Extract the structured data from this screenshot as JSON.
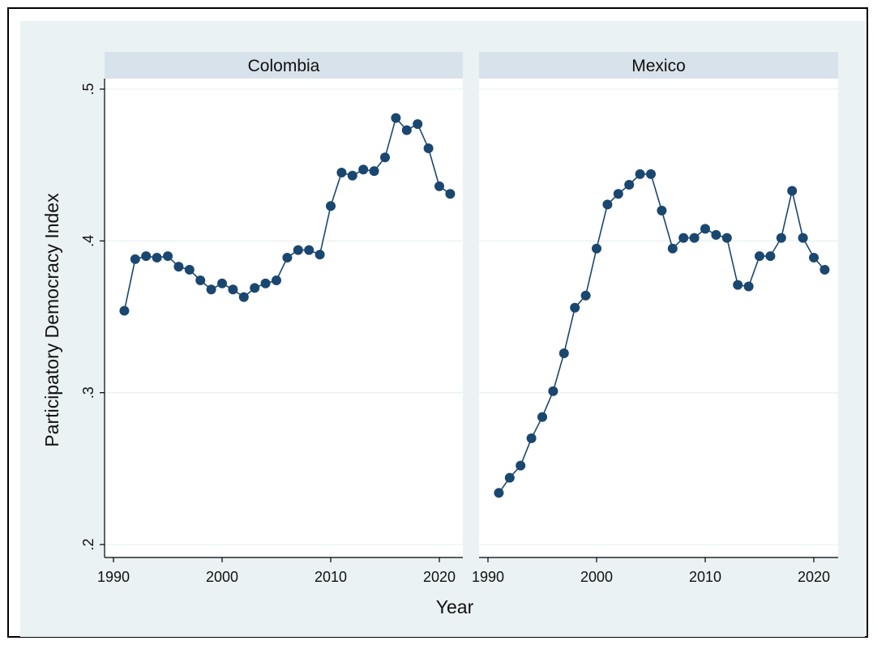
{
  "chart_data": {
    "type": "line",
    "ylabel": "Participatory Democracy Index",
    "xlabel": "Year",
    "y_ticks": [
      ".2",
      ".3",
      ".4",
      ".5"
    ],
    "y_tick_values": [
      0.2,
      0.3,
      0.4,
      0.5
    ],
    "x_ticks": [
      "1990",
      "2000",
      "2010",
      "2020"
    ],
    "x_tick_values": [
      1990,
      2000,
      2010,
      2020
    ],
    "ylim": [
      0.2,
      0.5
    ],
    "xlim": [
      1990,
      2022
    ],
    "grid": true,
    "markers": "circle",
    "colors": {
      "series": "#1a476f",
      "panel_bg": "#ffffff",
      "strip_bg": "#d8e2ea",
      "outer_bg": "#eaf2f3",
      "grid": "#eaf2f3"
    },
    "panels": [
      {
        "title": "Colombia",
        "x": [
          1991,
          1992,
          1993,
          1994,
          1995,
          1996,
          1997,
          1998,
          1999,
          2000,
          2001,
          2002,
          2003,
          2004,
          2005,
          2006,
          2007,
          2008,
          2009,
          2010,
          2011,
          2012,
          2013,
          2014,
          2015,
          2016,
          2017,
          2018,
          2019,
          2020,
          2021
        ],
        "y": [
          0.354,
          0.388,
          0.39,
          0.389,
          0.39,
          0.383,
          0.381,
          0.374,
          0.368,
          0.372,
          0.368,
          0.363,
          0.369,
          0.372,
          0.374,
          0.389,
          0.394,
          0.394,
          0.391,
          0.423,
          0.445,
          0.443,
          0.447,
          0.446,
          0.455,
          0.481,
          0.473,
          0.477,
          0.461,
          0.436,
          0.431
        ]
      },
      {
        "title": "Mexico",
        "x": [
          1991,
          1992,
          1993,
          1994,
          1995,
          1996,
          1997,
          1998,
          1999,
          2000,
          2001,
          2002,
          2003,
          2004,
          2005,
          2006,
          2007,
          2008,
          2009,
          2010,
          2011,
          2012,
          2013,
          2014,
          2015,
          2016,
          2017,
          2018,
          2019,
          2020,
          2021
        ],
        "y": [
          0.234,
          0.244,
          0.252,
          0.27,
          0.284,
          0.301,
          0.326,
          0.356,
          0.364,
          0.395,
          0.424,
          0.431,
          0.437,
          0.444,
          0.444,
          0.42,
          0.395,
          0.402,
          0.402,
          0.408,
          0.404,
          0.402,
          0.371,
          0.37,
          0.39,
          0.39,
          0.402,
          0.433,
          0.402,
          0.389,
          0.381
        ]
      }
    ]
  }
}
